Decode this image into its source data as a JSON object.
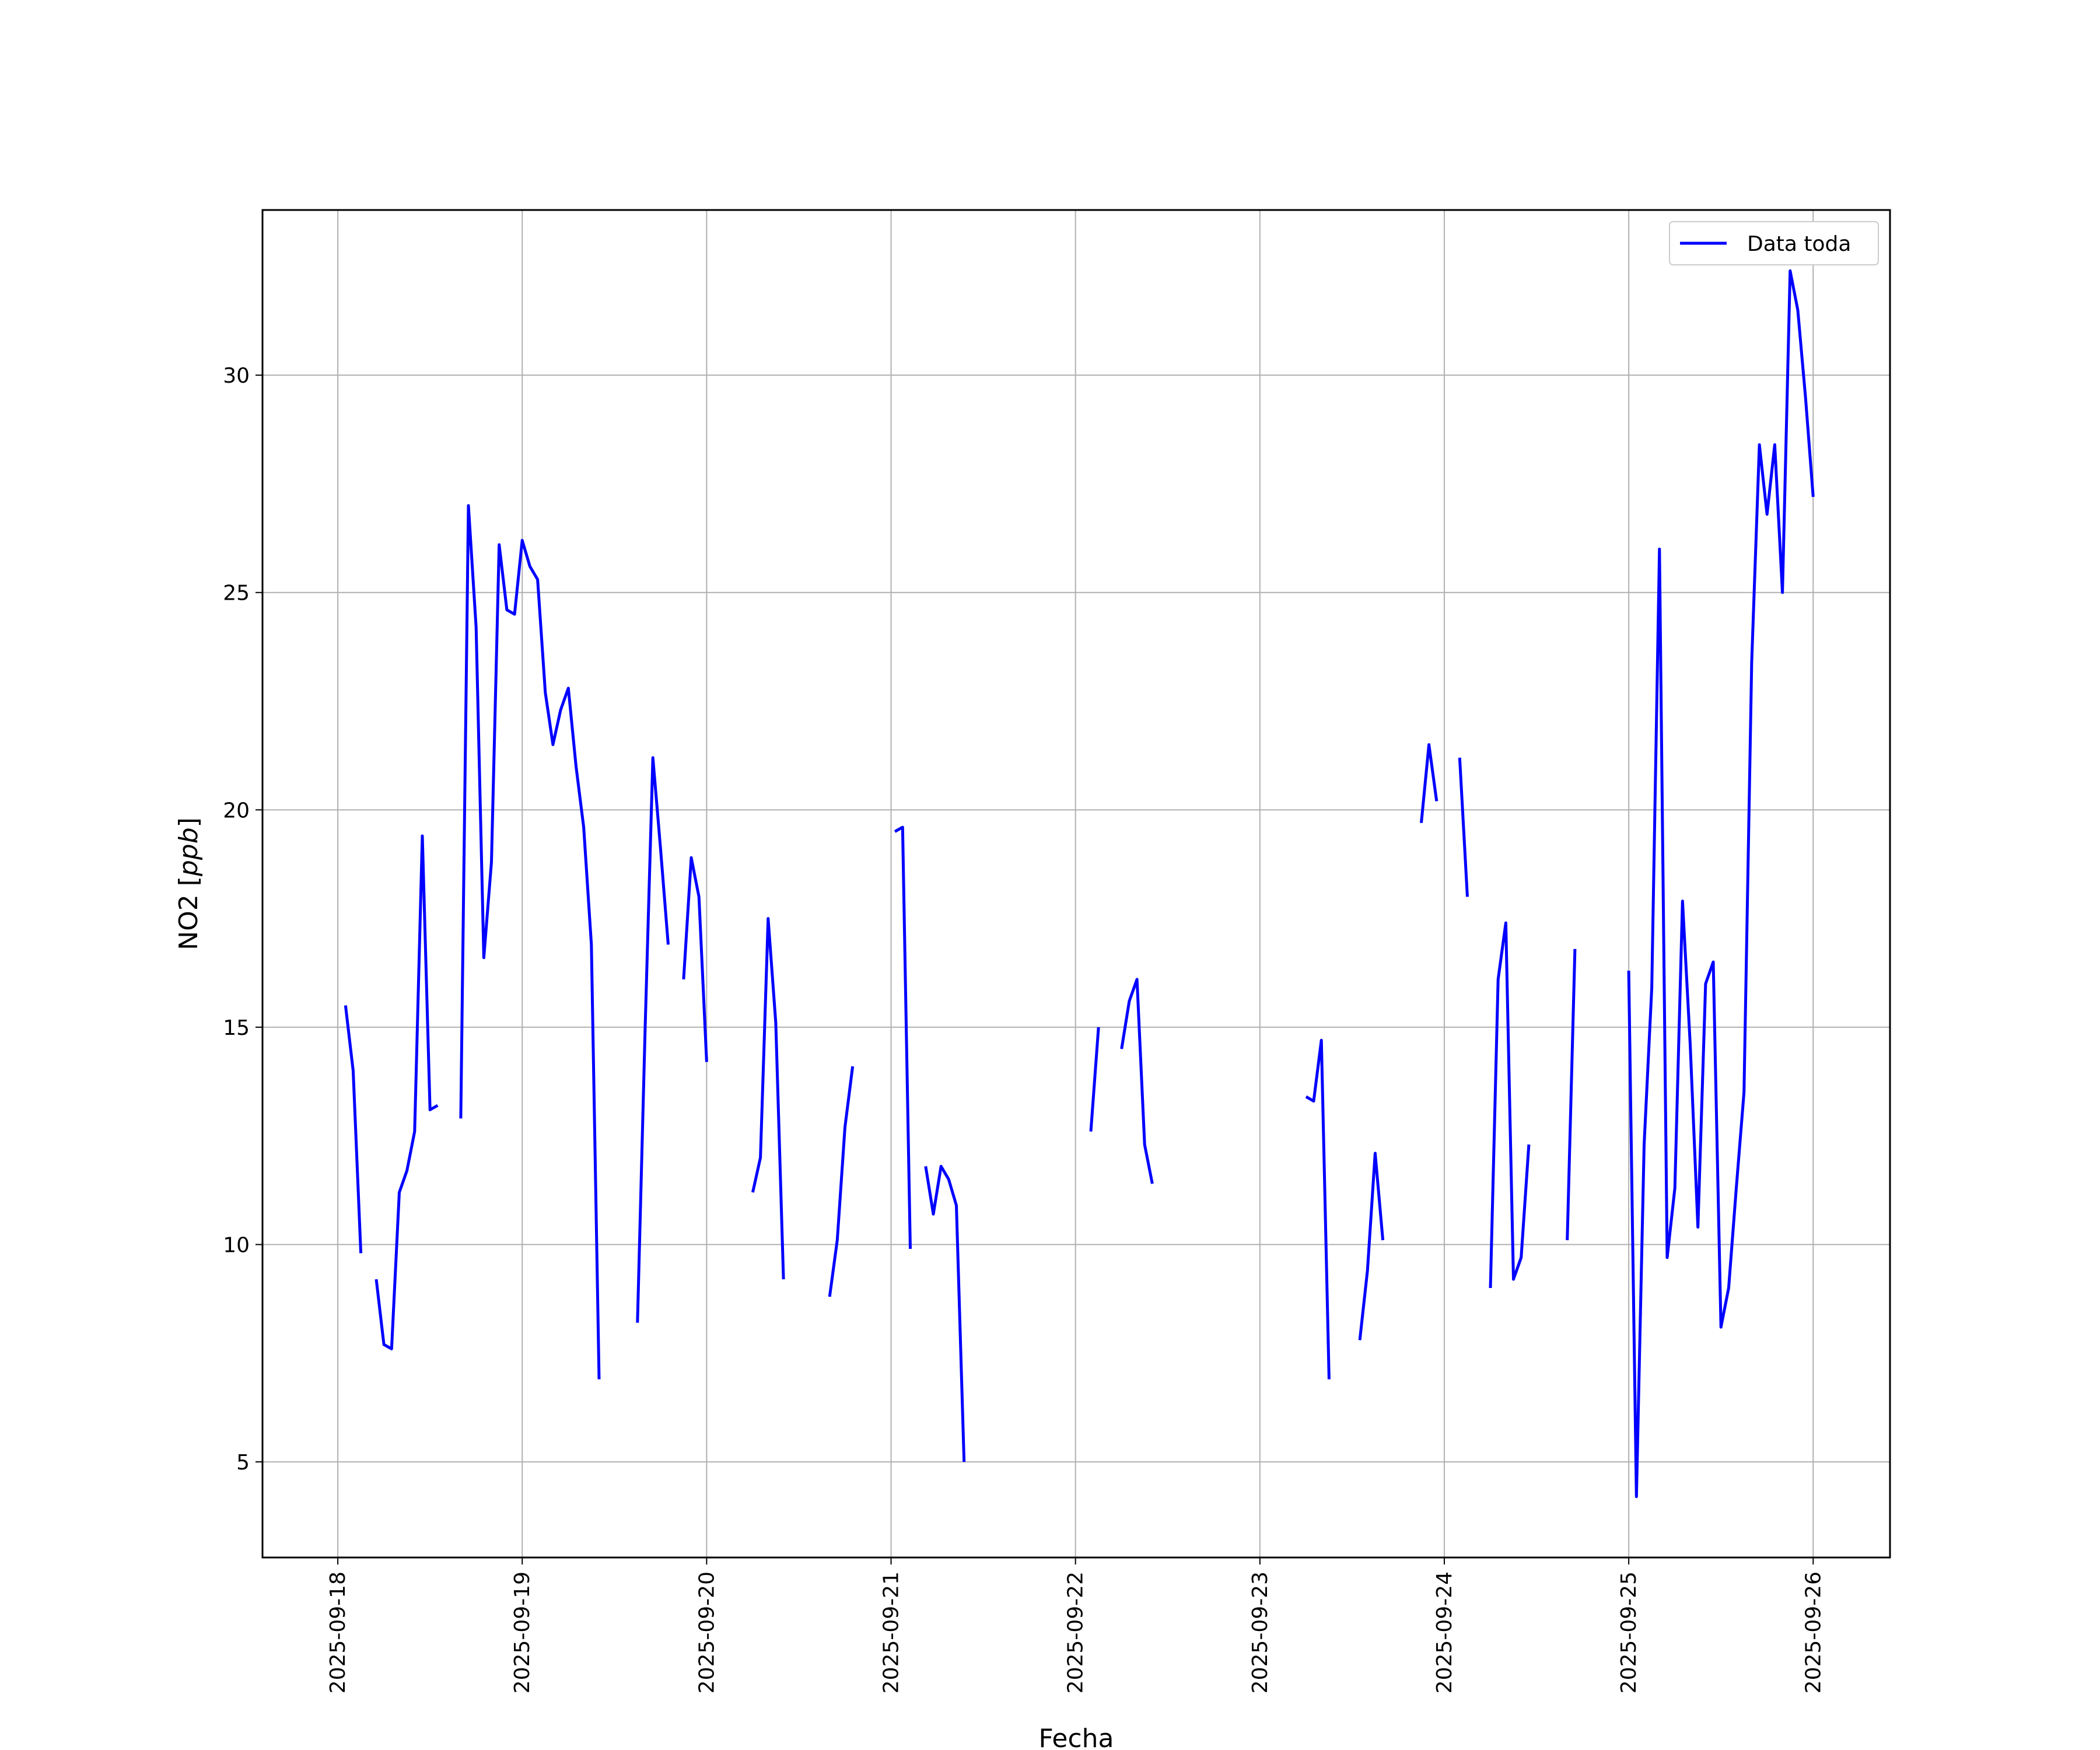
{
  "chart_data": {
    "type": "line",
    "title": "",
    "xlabel": "Fecha",
    "ylabel_main": "NO2 [",
    "ylabel_unit": "ppb",
    "ylabel_close": "]",
    "xlim": [
      "2025-09-17 14:12",
      "2025-09-26 10:00"
    ],
    "ylim": [
      2.8,
      33.8
    ],
    "grid": true,
    "legend_position": "top-right",
    "x_ticks": [
      "2025-09-18",
      "2025-09-19",
      "2025-09-20",
      "2025-09-21",
      "2025-09-22",
      "2025-09-23",
      "2025-09-24",
      "2025-09-25",
      "2025-09-26"
    ],
    "y_ticks": [
      5,
      10,
      15,
      20,
      25,
      30
    ],
    "series": [
      {
        "name": "Data toda",
        "color": "#0000ff",
        "segments": [
          [
            [
              "2025-09-18 01:00",
              15.5
            ],
            [
              "2025-09-18 02:00",
              14.0
            ],
            [
              "2025-09-18 03:00",
              9.8
            ]
          ],
          [
            [
              "2025-09-18 05:00",
              9.2
            ],
            [
              "2025-09-18 06:00",
              7.7
            ],
            [
              "2025-09-18 07:00",
              7.6
            ],
            [
              "2025-09-18 08:00",
              11.2
            ],
            [
              "2025-09-18 09:00",
              11.7
            ],
            [
              "2025-09-18 10:00",
              12.6
            ],
            [
              "2025-09-18 11:00",
              19.4
            ],
            [
              "2025-09-18 12:00",
              13.1
            ],
            [
              "2025-09-18 13:00",
              13.2
            ]
          ],
          [
            [
              "2025-09-18 16:00",
              12.9
            ],
            [
              "2025-09-18 17:00",
              27.0
            ],
            [
              "2025-09-18 18:00",
              24.2
            ],
            [
              "2025-09-18 19:00",
              16.6
            ],
            [
              "2025-09-18 20:00",
              18.8
            ],
            [
              "2025-09-18 21:00",
              26.1
            ],
            [
              "2025-09-18 22:00",
              24.6
            ],
            [
              "2025-09-18 23:00",
              24.5
            ],
            [
              "2025-09-19 00:00",
              26.2
            ],
            [
              "2025-09-19 01:00",
              25.6
            ],
            [
              "2025-09-19 02:00",
              25.3
            ],
            [
              "2025-09-19 03:00",
              22.7
            ],
            [
              "2025-09-19 04:00",
              21.5
            ],
            [
              "2025-09-19 05:00",
              22.3
            ],
            [
              "2025-09-19 06:00",
              22.8
            ],
            [
              "2025-09-19 07:00",
              21.0
            ],
            [
              "2025-09-19 08:00",
              19.6
            ],
            [
              "2025-09-19 09:00",
              16.9
            ],
            [
              "2025-09-19 10:00",
              6.9
            ]
          ],
          [
            [
              "2025-09-19 15:00",
              8.2
            ],
            [
              "2025-09-19 16:00",
              15.0
            ],
            [
              "2025-09-19 17:00",
              21.2
            ],
            [
              "2025-09-19 18:00",
              19.1
            ],
            [
              "2025-09-19 19:00",
              16.9
            ]
          ],
          [
            [
              "2025-09-19 21:00",
              16.1
            ],
            [
              "2025-09-19 22:00",
              18.9
            ],
            [
              "2025-09-19 23:00",
              18.0
            ],
            [
              "2025-09-20 00:00",
              14.2
            ]
          ],
          [
            [
              "2025-09-20 06:00",
              11.2
            ],
            [
              "2025-09-20 07:00",
              12.0
            ],
            [
              "2025-09-20 08:00",
              17.5
            ],
            [
              "2025-09-20 09:00",
              15.1
            ],
            [
              "2025-09-20 10:00",
              9.2
            ]
          ],
          [
            [
              "2025-09-20 16:00",
              8.8
            ],
            [
              "2025-09-20 17:00",
              10.1
            ],
            [
              "2025-09-20 18:00",
              12.7
            ],
            [
              "2025-09-20 19:00",
              14.1
            ]
          ],
          [
            [
              "2025-09-21 00:30",
              19.5
            ],
            [
              "2025-09-21 01:30",
              19.6
            ],
            [
              "2025-09-21 02:30",
              9.9
            ]
          ],
          [
            [
              "2025-09-21 04:30",
              11.8
            ],
            [
              "2025-09-21 05:30",
              10.7
            ],
            [
              "2025-09-21 06:30",
              11.8
            ],
            [
              "2025-09-21 07:30",
              11.5
            ],
            [
              "2025-09-21 08:30",
              10.9
            ],
            [
              "2025-09-21 09:30",
              5.0
            ]
          ],
          [
            [
              "2025-09-22 02:00",
              12.6
            ],
            [
              "2025-09-22 03:00",
              15.0
            ]
          ],
          [
            [
              "2025-09-22 06:00",
              14.5
            ],
            [
              "2025-09-22 07:00",
              15.6
            ],
            [
              "2025-09-22 08:00",
              16.1
            ],
            [
              "2025-09-22 09:00",
              12.3
            ],
            [
              "2025-09-22 10:00",
              11.4
            ]
          ],
          [
            [
              "2025-09-23 06:00",
              13.4
            ],
            [
              "2025-09-23 07:00",
              13.3
            ],
            [
              "2025-09-23 08:00",
              14.7
            ],
            [
              "2025-09-23 09:00",
              6.9
            ]
          ],
          [
            [
              "2025-09-23 13:00",
              7.8
            ],
            [
              "2025-09-23 14:00",
              9.4
            ],
            [
              "2025-09-23 15:00",
              12.1
            ],
            [
              "2025-09-23 16:00",
              10.1
            ]
          ],
          [
            [
              "2025-09-23 21:00",
              19.7
            ],
            [
              "2025-09-23 22:00",
              21.5
            ],
            [
              "2025-09-23 23:00",
              20.2
            ]
          ],
          [
            [
              "2025-09-24 02:00",
              21.2
            ],
            [
              "2025-09-24 03:00",
              18.0
            ]
          ],
          [
            [
              "2025-09-24 06:00",
              9.0
            ],
            [
              "2025-09-24 07:00",
              16.1
            ],
            [
              "2025-09-24 08:00",
              17.4
            ],
            [
              "2025-09-24 09:00",
              9.2
            ],
            [
              "2025-09-24 10:00",
              9.7
            ],
            [
              "2025-09-24 11:00",
              12.3
            ]
          ],
          [
            [
              "2025-09-24 16:00",
              10.1
            ],
            [
              "2025-09-24 17:00",
              16.8
            ]
          ],
          [
            [
              "2025-09-25 00:00",
              16.3
            ],
            [
              "2025-09-25 01:00",
              4.2
            ],
            [
              "2025-09-25 02:00",
              12.3
            ],
            [
              "2025-09-25 03:00",
              15.9
            ],
            [
              "2025-09-25 04:00",
              26.0
            ],
            [
              "2025-09-25 05:00",
              9.7
            ],
            [
              "2025-09-25 06:00",
              11.3
            ],
            [
              "2025-09-25 07:00",
              17.9
            ],
            [
              "2025-09-25 08:00",
              14.6
            ],
            [
              "2025-09-25 09:00",
              10.4
            ],
            [
              "2025-09-25 10:00",
              16.0
            ],
            [
              "2025-09-25 11:00",
              16.5
            ],
            [
              "2025-09-25 12:00",
              8.1
            ],
            [
              "2025-09-25 13:00",
              9.0
            ],
            [
              "2025-09-25 14:00",
              11.3
            ],
            [
              "2025-09-25 15:00",
              13.5
            ],
            [
              "2025-09-25 16:00",
              23.4
            ],
            [
              "2025-09-25 17:00",
              28.4
            ],
            [
              "2025-09-25 18:00",
              26.8
            ],
            [
              "2025-09-25 19:00",
              28.4
            ],
            [
              "2025-09-25 20:00",
              25.0
            ],
            [
              "2025-09-25 21:00",
              32.4
            ],
            [
              "2025-09-25 22:00",
              31.5
            ],
            [
              "2025-09-25 23:00",
              29.5
            ],
            [
              "2025-09-26 00:00",
              27.2
            ]
          ]
        ]
      }
    ]
  }
}
